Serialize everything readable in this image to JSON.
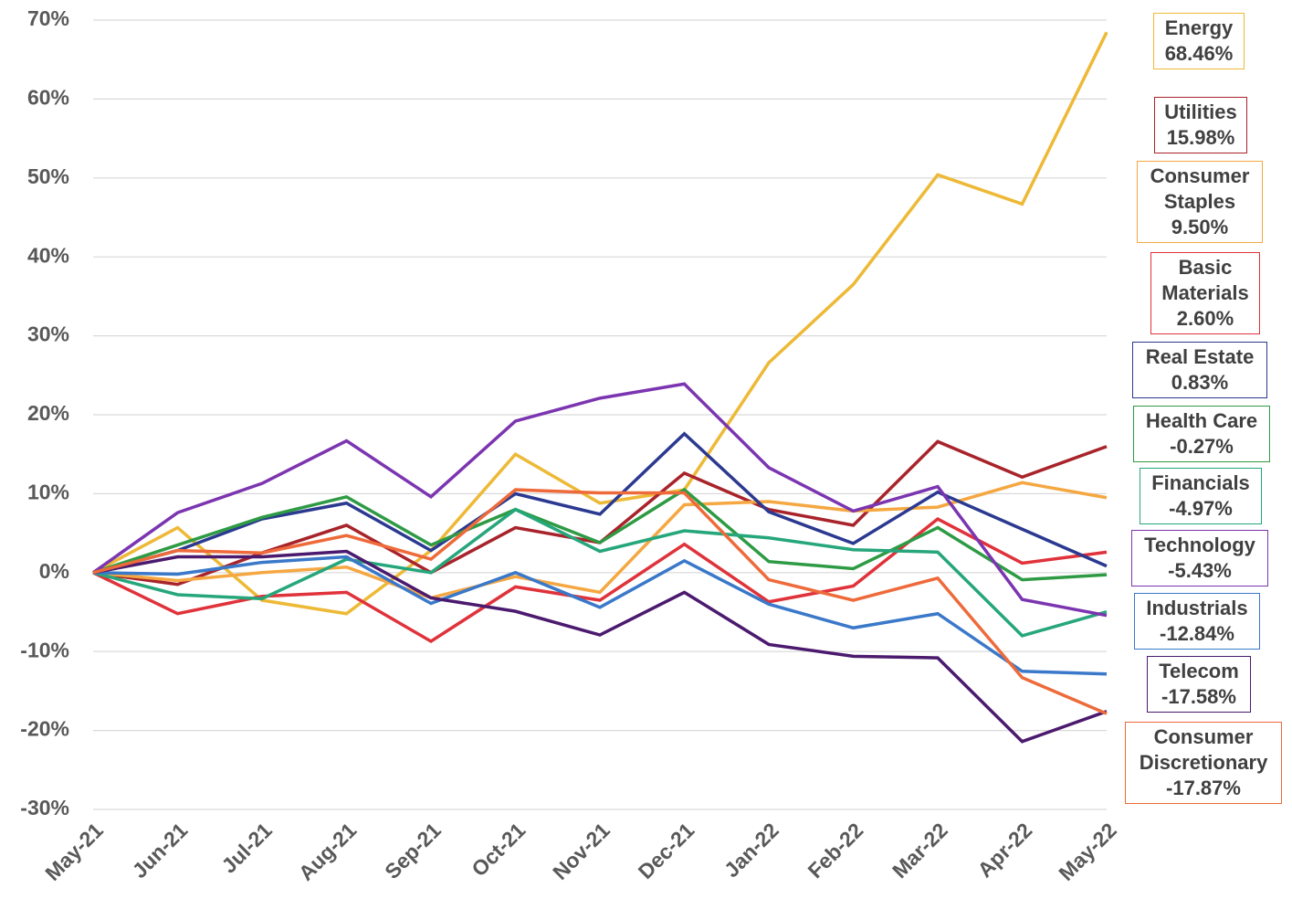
{
  "chart_data": {
    "type": "line",
    "categories": [
      "May-21",
      "Jun-21",
      "Jul-21",
      "Aug-21",
      "Sep-21",
      "Oct-21",
      "Nov-21",
      "Dec-21",
      "Jan-22",
      "Feb-22",
      "Mar-22",
      "Apr-22",
      "May-22"
    ],
    "ylim": [
      -30,
      70
    ],
    "yticks": [
      {
        "value": -30,
        "label": "-30%"
      },
      {
        "value": -20,
        "label": "-20%"
      },
      {
        "value": -10,
        "label": "-10%"
      },
      {
        "value": 0,
        "label": "0%"
      },
      {
        "value": 10,
        "label": "10%"
      },
      {
        "value": 20,
        "label": "20%"
      },
      {
        "value": 30,
        "label": "30%"
      },
      {
        "value": 40,
        "label": "40%"
      },
      {
        "value": 50,
        "label": "50%"
      },
      {
        "value": 60,
        "label": "60%"
      },
      {
        "value": 70,
        "label": "70%"
      }
    ],
    "grid": true,
    "series": [
      {
        "name": "Energy",
        "color": "#EDB936",
        "values": [
          0,
          5.7,
          -3.5,
          -5.2,
          2.8,
          15,
          8.8,
          10.5,
          26.6,
          36.5,
          50.4,
          46.7,
          68.46
        ],
        "value_labels": [
          null,
          null,
          null,
          null,
          null,
          null,
          null,
          null,
          null,
          null,
          null,
          null,
          "68.46%"
        ]
      },
      {
        "name": "Utilities",
        "color": "#A8232A",
        "values": [
          0,
          -1.5,
          2.5,
          6,
          0,
          5.7,
          3.8,
          12.6,
          8,
          6,
          16.6,
          12.1,
          15.98
        ],
        "value_labels": [
          null,
          null,
          null,
          null,
          null,
          null,
          null,
          null,
          null,
          null,
          null,
          null,
          "15.98%"
        ]
      },
      {
        "name": "Consumer Staples",
        "color": "#F5A742",
        "values": [
          0,
          -1,
          0,
          0.7,
          -3.2,
          -0.5,
          -2.5,
          8.6,
          9,
          7.8,
          8.3,
          11.4,
          9.5
        ],
        "value_labels": [
          null,
          null,
          null,
          null,
          null,
          null,
          null,
          null,
          null,
          null,
          null,
          null,
          "9.50%"
        ]
      },
      {
        "name": "Basic Materials",
        "color": "#E0323A",
        "values": [
          0,
          -5.2,
          -3,
          -2.5,
          -8.7,
          -1.8,
          -3.5,
          3.6,
          -3.7,
          -1.7,
          6.8,
          1.2,
          2.6
        ],
        "value_labels": [
          null,
          null,
          null,
          null,
          null,
          null,
          null,
          null,
          null,
          null,
          null,
          null,
          "2.60%"
        ]
      },
      {
        "name": "Real Estate",
        "color": "#2B3990",
        "values": [
          0,
          2.8,
          6.8,
          8.8,
          2.8,
          10,
          7.4,
          17.6,
          7.7,
          3.7,
          10.2,
          5.5,
          0.83
        ],
        "value_labels": [
          null,
          null,
          null,
          null,
          null,
          null,
          null,
          null,
          null,
          null,
          null,
          null,
          "0.83%"
        ]
      },
      {
        "name": "Health Care",
        "color": "#2E9B44",
        "values": [
          0,
          3.5,
          7,
          9.6,
          3.5,
          8,
          3.8,
          10.5,
          1.4,
          0.5,
          5.7,
          -0.9,
          -0.27
        ],
        "value_labels": [
          null,
          null,
          null,
          null,
          null,
          null,
          null,
          null,
          null,
          null,
          null,
          null,
          "-0.27%"
        ]
      },
      {
        "name": "Financials",
        "color": "#26A67B",
        "values": [
          0,
          -2.8,
          -3.3,
          1.7,
          0,
          8,
          2.7,
          5.3,
          4.4,
          2.9,
          2.6,
          -8,
          -4.97
        ],
        "value_labels": [
          null,
          null,
          null,
          null,
          null,
          null,
          null,
          null,
          null,
          null,
          null,
          null,
          "-4.97%"
        ]
      },
      {
        "name": "Technology",
        "color": "#7B35B0",
        "values": [
          0,
          7.6,
          11.3,
          16.7,
          9.6,
          19.2,
          22.1,
          23.9,
          13.3,
          7.8,
          10.9,
          -3.4,
          -5.43
        ],
        "value_labels": [
          null,
          null,
          null,
          null,
          null,
          null,
          null,
          null,
          null,
          null,
          null,
          null,
          "-5.43%"
        ]
      },
      {
        "name": "Industrials",
        "color": "#3A78C9",
        "values": [
          0,
          -0.2,
          1.3,
          2,
          -3.9,
          0,
          -4.4,
          1.5,
          -4,
          -7,
          -5.2,
          -12.5,
          -12.84
        ],
        "value_labels": [
          null,
          null,
          null,
          null,
          null,
          null,
          null,
          null,
          null,
          null,
          null,
          null,
          "-12.84%"
        ]
      },
      {
        "name": "Telecom",
        "color": "#4B1A6E",
        "values": [
          0,
          2,
          2,
          2.7,
          -3.2,
          -4.9,
          -7.9,
          -2.5,
          -9.1,
          -10.6,
          -10.8,
          -21.4,
          -17.58
        ],
        "value_labels": [
          null,
          null,
          null,
          null,
          null,
          null,
          null,
          null,
          null,
          null,
          null,
          null,
          "-17.58%"
        ]
      },
      {
        "name": "Consumer Discretionary",
        "color": "#EE6A3A",
        "values": [
          0,
          2.8,
          2.5,
          4.7,
          1.7,
          10.5,
          10.1,
          10.1,
          -0.9,
          -3.5,
          -0.7,
          -13.3,
          -17.87
        ],
        "value_labels": [
          null,
          null,
          null,
          null,
          null,
          null,
          null,
          null,
          null,
          null,
          null,
          null,
          "-17.87%"
        ]
      }
    ]
  }
}
